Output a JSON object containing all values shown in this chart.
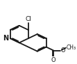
{
  "background": "#ffffff",
  "bond_color": "#1a1a1a",
  "lw": 1.3,
  "figsize": [
    1.11,
    0.92
  ],
  "dpi": 100,
  "xlim": [
    0,
    1
  ],
  "ylim": [
    0,
    1
  ],
  "bl": 0.155
}
